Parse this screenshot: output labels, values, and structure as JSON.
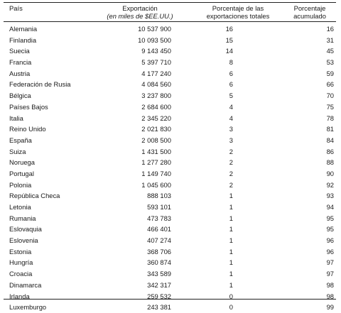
{
  "table": {
    "headers": {
      "country": "País",
      "export_line1": "Exportación",
      "export_line2": "(en miles de $EE.UU.)",
      "pct_line1": "Porcentaje de las",
      "pct_line2": "exportaciones totales",
      "cum_line1": "Porcentaje",
      "cum_line2": "acumulado"
    },
    "rows": [
      {
        "country": "Alemania",
        "export": "10 537 900",
        "pct": "16",
        "cum": "16"
      },
      {
        "country": "Finlandia",
        "export": "10 093 500",
        "pct": "15",
        "cum": "31"
      },
      {
        "country": "Suecia",
        "export": "9 143 450",
        "pct": "14",
        "cum": "45"
      },
      {
        "country": "Francia",
        "export": "5 397 710",
        "pct": "8",
        "cum": "53"
      },
      {
        "country": "Austria",
        "export": "4 177 240",
        "pct": "6",
        "cum": "59"
      },
      {
        "country": "Federación de Rusia",
        "export": "4 084 560",
        "pct": "6",
        "cum": "66"
      },
      {
        "country": "Bélgica",
        "export": "3 237 800",
        "pct": "5",
        "cum": "70"
      },
      {
        "country": "Países Bajos",
        "export": "2 684 600",
        "pct": "4",
        "cum": "75"
      },
      {
        "country": "Italia",
        "export": "2 345 220",
        "pct": "4",
        "cum": "78"
      },
      {
        "country": "Reino Unido",
        "export": "2 021 830",
        "pct": "3",
        "cum": "81"
      },
      {
        "country": "España",
        "export": "2 008 500",
        "pct": "3",
        "cum": "84"
      },
      {
        "country": "Suiza",
        "export": "1 431 500",
        "pct": "2",
        "cum": "86"
      },
      {
        "country": "Noruega",
        "export": "1 277 280",
        "pct": "2",
        "cum": "88"
      },
      {
        "country": "Portugal",
        "export": "1 149 740",
        "pct": "2",
        "cum": "90"
      },
      {
        "country": "Polonia",
        "export": "1 045 600",
        "pct": "2",
        "cum": "92"
      },
      {
        "country": "República Checa",
        "export": "888 103",
        "pct": "1",
        "cum": "93"
      },
      {
        "country": "Letonia",
        "export": "593 101",
        "pct": "1",
        "cum": "94"
      },
      {
        "country": "Rumania",
        "export": "473 783",
        "pct": "1",
        "cum": "95"
      },
      {
        "country": "Eslovaquia",
        "export": "466 401",
        "pct": "1",
        "cum": "95"
      },
      {
        "country": "Eslovenia",
        "export": "407 274",
        "pct": "1",
        "cum": "96"
      },
      {
        "country": "Estonia",
        "export": "368 706",
        "pct": "1",
        "cum": "96"
      },
      {
        "country": "Hungría",
        "export": "360 874",
        "pct": "1",
        "cum": "97"
      },
      {
        "country": "Croacia",
        "export": "343 589",
        "pct": "1",
        "cum": "97"
      },
      {
        "country": "Dinamarca",
        "export": "342 317",
        "pct": "1",
        "cum": "98"
      },
      {
        "country": "Irlanda",
        "export": "259 532",
        "pct": "0",
        "cum": "98"
      },
      {
        "country": "Luxemburgo",
        "export": "243 381",
        "pct": "0",
        "cum": "99"
      }
    ]
  }
}
